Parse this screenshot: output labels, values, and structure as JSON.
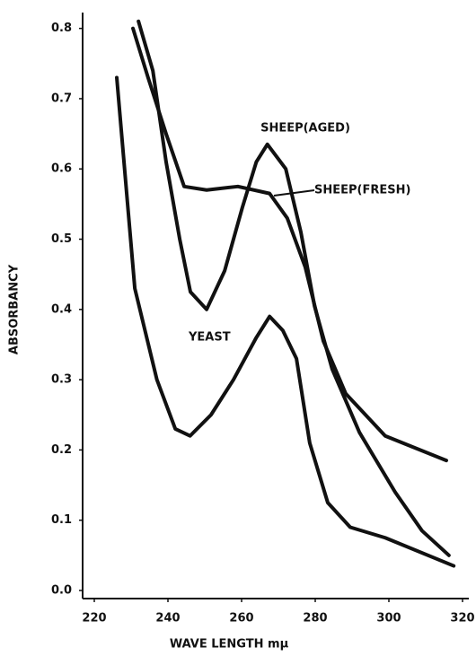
{
  "chart_data": {
    "type": "line",
    "xlabel": "WAVE LENGTH mμ",
    "ylabel": "ABSORBANCY",
    "xlim": [
      217,
      322
    ],
    "ylim": [
      -0.01,
      0.82
    ],
    "xticks": [
      220,
      240,
      260,
      280,
      300,
      320
    ],
    "yticks": [
      {
        "value": 0,
        "label": "0.0"
      },
      0.1,
      0.2,
      0.3,
      0.4,
      0.5,
      0.6,
      0.7,
      0.8
    ],
    "series": [
      {
        "name": "YEAST",
        "color": "#111111",
        "x": [
          226.1,
          231,
          237,
          242,
          246,
          251.7,
          257.8,
          264,
          267.6,
          271.2,
          274.9,
          278.5,
          283.4,
          289.5,
          299,
          317.6
        ],
        "values": [
          0.73,
          0.43,
          0.3,
          0.23,
          0.22,
          0.25,
          0.3,
          0.36,
          0.39,
          0.37,
          0.33,
          0.21,
          0.125,
          0.09,
          0.075,
          0.035
        ]
      },
      {
        "name": "SHEEP(FRESH)",
        "color": "#111111",
        "x": [
          230.5,
          234.6,
          239.5,
          244.4,
          250.5,
          259,
          267.6,
          272.4,
          277.3,
          282.2,
          288.3,
          299,
          315.6
        ],
        "values": [
          0.8,
          0.73,
          0.65,
          0.575,
          0.57,
          0.575,
          0.565,
          0.53,
          0.46,
          0.355,
          0.28,
          0.22,
          0.185
        ]
      },
      {
        "name": "SHEEP(AGED)",
        "color": "#111111",
        "x": [
          232,
          235.9,
          239.5,
          243.2,
          246.1,
          250.5,
          255.4,
          260.2,
          264,
          267,
          272,
          276.1,
          279.8,
          284.6,
          292,
          301.7,
          309,
          316.3
        ],
        "values": [
          0.81,
          0.74,
          0.61,
          0.5,
          0.425,
          0.4,
          0.455,
          0.545,
          0.61,
          0.635,
          0.6,
          0.51,
          0.405,
          0.315,
          0.225,
          0.14,
          0.085,
          0.05
        ]
      }
    ]
  }
}
